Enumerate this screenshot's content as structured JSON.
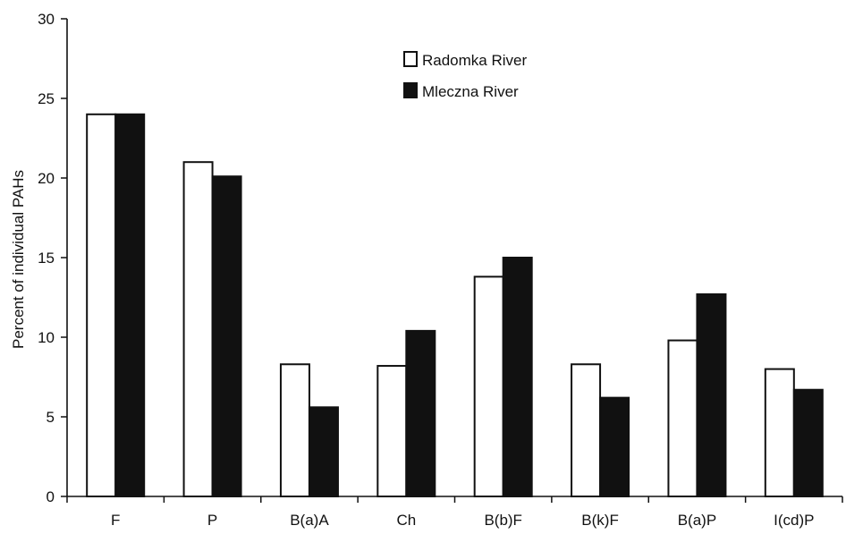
{
  "chart_data": {
    "type": "bar",
    "ylabel": "Percent of individual PAHs",
    "xlabel": "",
    "ylim": [
      0,
      30
    ],
    "yticks": [
      0,
      5,
      10,
      15,
      20,
      25,
      30
    ],
    "grid": false,
    "legend_position": "top-center",
    "categories": [
      "F",
      "P",
      "B(a)A",
      "Ch",
      "B(b)F",
      "B(k)F",
      "B(a)P",
      "I(cd)P"
    ],
    "series": [
      {
        "name": "Radomka River",
        "values": [
          24.0,
          21.0,
          8.3,
          8.2,
          13.8,
          8.3,
          9.8,
          8.0
        ],
        "fill": "#ffffff",
        "stroke": "#111111"
      },
      {
        "name": "Mleczna River",
        "values": [
          24.0,
          20.1,
          5.6,
          10.4,
          15.0,
          6.2,
          12.7,
          6.7
        ],
        "fill": "#111111",
        "stroke": "#111111"
      }
    ]
  }
}
